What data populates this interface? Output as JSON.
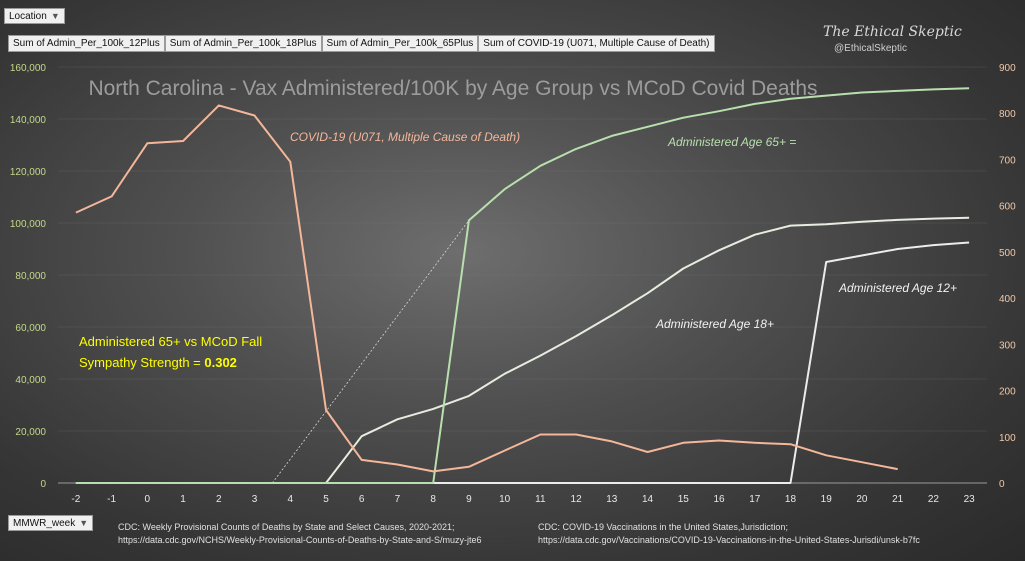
{
  "pivot": {
    "location_filter": "Location",
    "week_axis": "MMWR_week",
    "fields": [
      "Sum of Admin_Per_100k_12Plus",
      "Sum of Admin_Per_100k_18Plus",
      "Sum of Admin_Per_100k_65Plus",
      "Sum of COVID-19 (U071, Multiple Cause of Death)"
    ]
  },
  "watermark": {
    "name": "The Ethical Skeptic",
    "handle": "@EthicalSkeptic"
  },
  "sources": {
    "left_line1": "CDC: Weekly Provisional Counts of Deaths by State and Select Causes, 2020-2021;",
    "left_line2": "https://data.cdc.gov/NCHS/Weekly-Provisional-Counts-of-Deaths-by-State-and-S/muzy-jte6",
    "right_line1": "CDC: COVID-19 Vaccinations in the United States,Jurisdiction;",
    "right_line2": "https://data.cdc.gov/Vaccinations/COVID-19-Vaccinations-in-the-United-States-Jurisdi/unsk-b7fc"
  },
  "colors": {
    "covid": "#f4b79a",
    "age65": "#b8e0ae",
    "age18": "#e6ede0",
    "age12": "#ececec",
    "highlight": "#ffff00",
    "axis_left": "#c3d98a",
    "axis_right": "#f2c9a8"
  },
  "chart_data": {
    "type": "line",
    "title": "North Carolina - Vax Administered/100K by Age Group vs MCoD Covid Deaths",
    "x": [
      -2,
      -1,
      0,
      1,
      2,
      3,
      4,
      5,
      6,
      7,
      8,
      9,
      10,
      11,
      12,
      13,
      14,
      15,
      16,
      17,
      18,
      19,
      20,
      21,
      22,
      23
    ],
    "ylim_left": [
      0,
      160000
    ],
    "yticks_left": [
      0,
      20000,
      40000,
      60000,
      80000,
      100000,
      120000,
      140000,
      160000
    ],
    "yticks_left_labels": [
      "0",
      "20,000",
      "40,000",
      "60,000",
      "80,000",
      "100,000",
      "120,000",
      "140,000",
      "160,000"
    ],
    "ylim_right": [
      0,
      900
    ],
    "yticks_right": [
      0,
      100,
      200,
      300,
      400,
      500,
      600,
      700,
      800,
      900
    ],
    "series": [
      {
        "name": "Administered Age 12+",
        "axis": "left",
        "x": [
          -2,
          -1,
          0,
          1,
          2,
          3,
          4,
          5,
          6,
          7,
          8,
          9,
          10,
          11,
          12,
          13,
          14,
          15,
          16,
          17,
          18,
          19,
          20,
          21,
          22,
          23
        ],
        "values": [
          0,
          0,
          0,
          0,
          0,
          0,
          0,
          0,
          0,
          0,
          0,
          0,
          0,
          0,
          0,
          0,
          0,
          0,
          0,
          0,
          0,
          85000,
          87500,
          90000,
          91500,
          92500
        ]
      },
      {
        "name": "Administered Age 18+",
        "axis": "left",
        "x": [
          -2,
          -1,
          0,
          1,
          2,
          3,
          4,
          5,
          6,
          7,
          8,
          9,
          10,
          11,
          12,
          13,
          14,
          15,
          16,
          17,
          18,
          19,
          20,
          21,
          22,
          23
        ],
        "values": [
          0,
          0,
          0,
          0,
          0,
          0,
          0,
          0,
          18000,
          24500,
          28500,
          33500,
          42000,
          49000,
          56500,
          64500,
          73000,
          82500,
          89500,
          95500,
          99000,
          99500,
          100500,
          101200,
          101700,
          102000
        ]
      },
      {
        "name": "Administered Age 65+",
        "axis": "left",
        "x": [
          -2,
          -1,
          0,
          1,
          2,
          3,
          4,
          5,
          6,
          7,
          8,
          9,
          10,
          11,
          12,
          13,
          14,
          15,
          16,
          17,
          18,
          19,
          20,
          21,
          22,
          23
        ],
        "values": [
          0,
          0,
          0,
          0,
          0,
          0,
          0,
          0,
          0,
          0,
          0,
          101000,
          113000,
          122000,
          128500,
          133500,
          137000,
          140500,
          143000,
          145800,
          147800,
          149000,
          150200,
          150800,
          151400,
          151800
        ]
      },
      {
        "name": "COVID-19 (U071, Multiple Cause of Death)",
        "axis": "right",
        "x": [
          -2,
          -1,
          0,
          1,
          2,
          3,
          4,
          5,
          6,
          7,
          8,
          9,
          10,
          11,
          12,
          13,
          14,
          15,
          16,
          17,
          18,
          19,
          20,
          21
        ],
        "values": [
          585,
          620,
          735,
          740,
          817,
          795,
          695,
          158,
          50,
          40,
          25,
          35,
          70,
          105,
          105,
          90,
          67,
          87,
          92,
          87,
          84,
          60,
          45,
          30
        ]
      }
    ],
    "trendline": {
      "x": [
        3.5,
        9
      ],
      "values": [
        0,
        101000
      ]
    },
    "annotations": [
      {
        "text": "COVID-19 (U071, Multiple Cause of Death)",
        "series": "COVID-19 (U071, Multiple Cause of Death)"
      },
      {
        "text": "Administered Age 65+ =",
        "series": "Administered Age 65+"
      },
      {
        "text": "Administered Age 18+",
        "series": "Administered Age 18+"
      },
      {
        "text": "Administered Age 12+",
        "series": "Administered Age 12+"
      }
    ],
    "highlight_note": {
      "line1": "Administered 65+ vs MCoD Fall",
      "line2": "Sympathy  Strength  = ",
      "value": "0.302"
    },
    "grid": true
  }
}
